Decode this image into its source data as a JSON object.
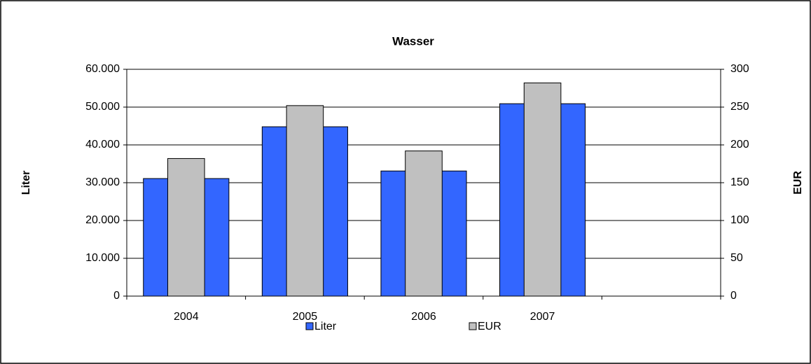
{
  "chart_data": {
    "type": "bar",
    "title": "Wasser",
    "y_label": "Liter",
    "y2_label": "EUR",
    "categories": [
      "2004",
      "2005",
      "2006",
      "2007",
      null
    ],
    "series": [
      {
        "name": "Liter",
        "color": "#3366ff",
        "values": [
          31100,
          44800,
          33100,
          50900,
          null
        ]
      },
      {
        "name": "EUR",
        "color": "#c0c0c0",
        "axis": "y2",
        "values": [
          182,
          252,
          192,
          282,
          null
        ]
      }
    ],
    "ylim": [
      0,
      60000
    ],
    "yticks": [
      0,
      {
        "value": 10000,
        "label": "10.000"
      },
      {
        "value": 20000,
        "label": "20.000"
      },
      {
        "value": 30000,
        "label": "30.000"
      },
      {
        "value": 40000,
        "label": "40.000"
      },
      {
        "value": 50000,
        "label": "50.000"
      },
      {
        "value": 60000,
        "label": "60.000"
      }
    ],
    "y2lim": [
      0,
      300
    ],
    "y2ticks": [
      0,
      50,
      100,
      150,
      200,
      250,
      300
    ],
    "grid": true,
    "legend": "bottom"
  }
}
